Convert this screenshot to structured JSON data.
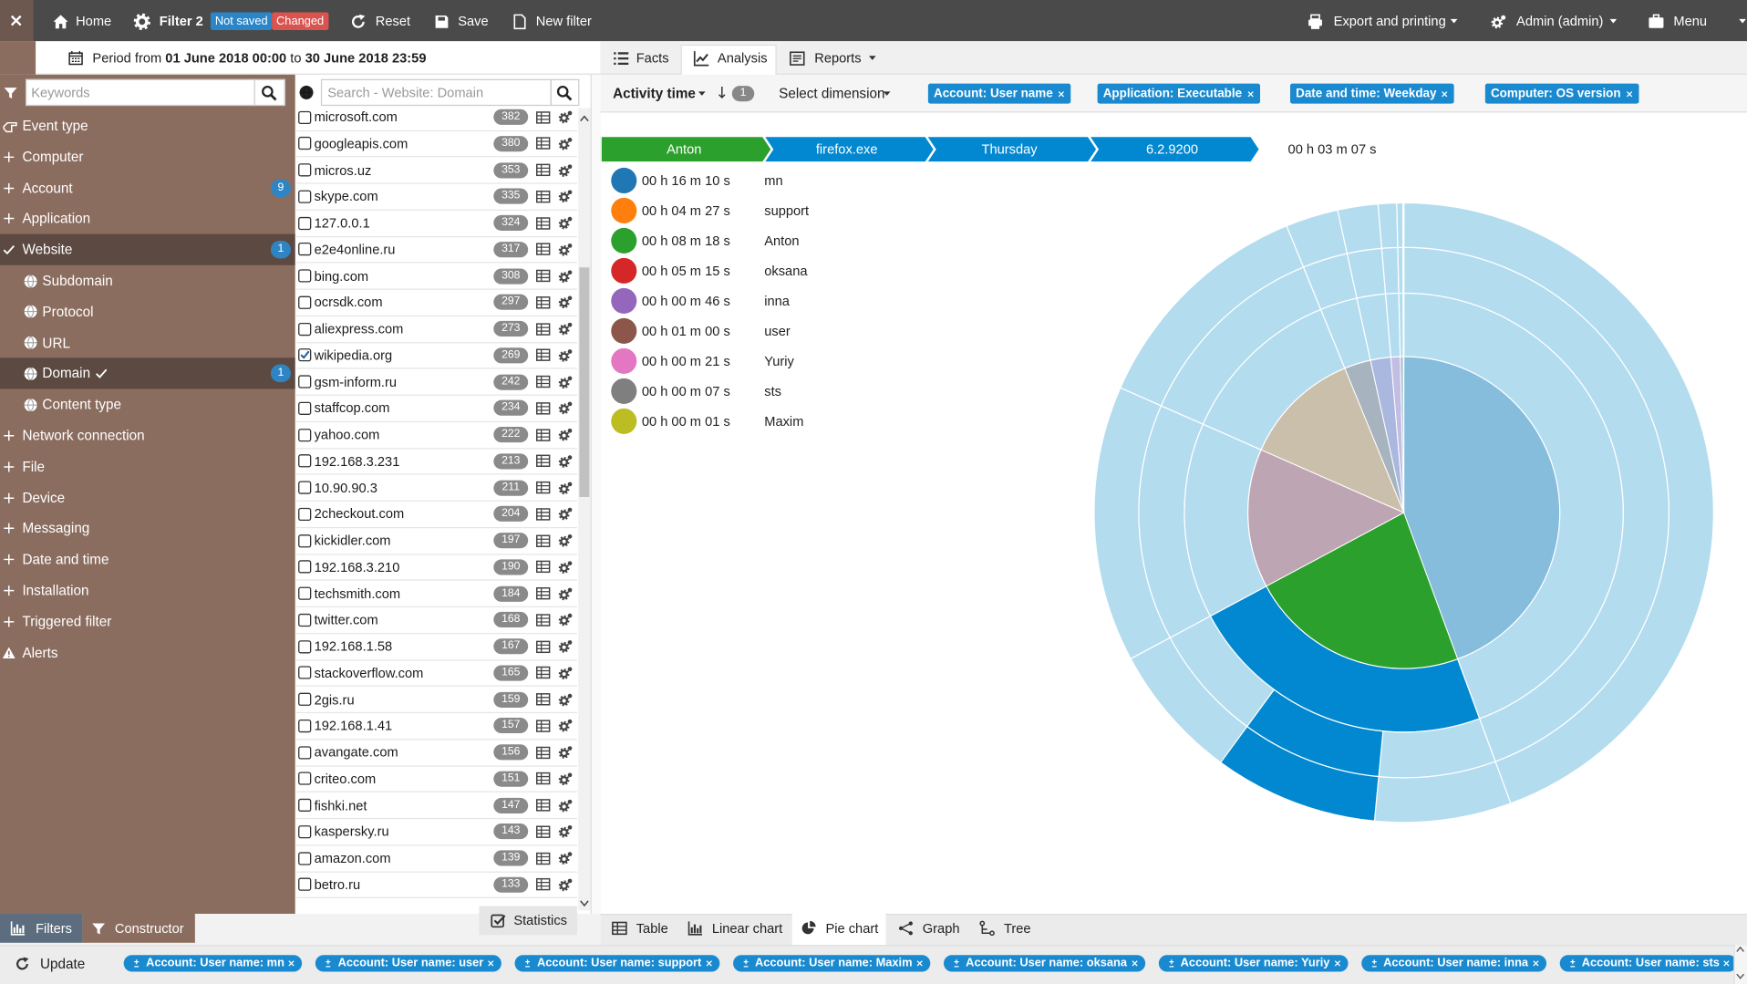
{
  "topbar": {
    "home": "Home",
    "filter": "Filter 2",
    "not_saved": "Not saved",
    "changed": "Changed",
    "reset": "Reset",
    "save": "Save",
    "new_filter": "New filter",
    "export": "Export and printing",
    "admin": "Admin (admin)",
    "menu": "Menu"
  },
  "period": {
    "prefix": "Period from",
    "start": "01 June 2018 00:00",
    "middle": "to",
    "end": "30 June 2018 23:59"
  },
  "sidebar": {
    "search_placeholder": "Keywords",
    "items": [
      {
        "label": "Event type",
        "icon": "hand"
      },
      {
        "label": "Computer",
        "icon": "plus"
      },
      {
        "label": "Account",
        "icon": "plus",
        "badge": 9
      },
      {
        "label": "Application",
        "icon": "plus"
      },
      {
        "label": "Website",
        "icon": "check",
        "badge": 1,
        "selected": true,
        "children": [
          {
            "label": "Subdomain"
          },
          {
            "label": "Protocol"
          },
          {
            "label": "URL"
          },
          {
            "label": "Domain",
            "badge": 1,
            "selected": true,
            "checked": true
          },
          {
            "label": "Content type"
          }
        ]
      },
      {
        "label": "Network connection",
        "icon": "plus"
      },
      {
        "label": "File",
        "icon": "plus"
      },
      {
        "label": "Device",
        "icon": "plus"
      },
      {
        "label": "Messaging",
        "icon": "plus"
      },
      {
        "label": "Date and time",
        "icon": "plus"
      },
      {
        "label": "Installation",
        "icon": "plus"
      },
      {
        "label": "Triggered filter",
        "icon": "plus"
      },
      {
        "label": "Alerts",
        "icon": "alert"
      }
    ]
  },
  "domains": {
    "search_placeholder": "Search - Website: Domain",
    "items": [
      {
        "name": "microsoft.com",
        "count": 382
      },
      {
        "name": "googleapis.com",
        "count": 380
      },
      {
        "name": "micros.uz",
        "count": 353
      },
      {
        "name": "skype.com",
        "count": 335
      },
      {
        "name": "127.0.0.1",
        "count": 324
      },
      {
        "name": "e2e4online.ru",
        "count": 317
      },
      {
        "name": "bing.com",
        "count": 308
      },
      {
        "name": "ocrsdk.com",
        "count": 297
      },
      {
        "name": "aliexpress.com",
        "count": 273
      },
      {
        "name": "wikipedia.org",
        "count": 269,
        "checked": true
      },
      {
        "name": "gsm-inform.ru",
        "count": 242
      },
      {
        "name": "staffcop.com",
        "count": 234
      },
      {
        "name": "yahoo.com",
        "count": 222
      },
      {
        "name": "192.168.3.231",
        "count": 213
      },
      {
        "name": "10.90.90.3",
        "count": 211
      },
      {
        "name": "2checkout.com",
        "count": 204
      },
      {
        "name": "kickidler.com",
        "count": 197
      },
      {
        "name": "192.168.3.210",
        "count": 190
      },
      {
        "name": "techsmith.com",
        "count": 184
      },
      {
        "name": "twitter.com",
        "count": 168
      },
      {
        "name": "192.168.1.58",
        "count": 167
      },
      {
        "name": "stackoverflow.com",
        "count": 165
      },
      {
        "name": "2gis.ru",
        "count": 159
      },
      {
        "name": "192.168.1.41",
        "count": 157
      },
      {
        "name": "avangate.com",
        "count": 156
      },
      {
        "name": "criteo.com",
        "count": 151
      },
      {
        "name": "fishki.net",
        "count": 147
      },
      {
        "name": "kaspersky.ru",
        "count": 143
      },
      {
        "name": "amazon.com",
        "count": 139
      },
      {
        "name": "betro.ru",
        "count": 133
      }
    ]
  },
  "left_tabs": {
    "filters": "Filters",
    "constructor": "Constructor",
    "statistics": "Statistics"
  },
  "view_tabs": {
    "facts": "Facts",
    "analysis": "Analysis",
    "reports": "Reports"
  },
  "toolbar": {
    "measure": "Activity time",
    "sort_badge": "1",
    "select_dimension": "Select dimension",
    "dimensions": [
      "Account: User name",
      "Application: Executable",
      "Date and time: Weekday",
      "Computer: OS version"
    ]
  },
  "breadcrumb": {
    "labels": [
      "Anton",
      "firefox.exe",
      "Thursday",
      "6.2.9200"
    ],
    "value": 187,
    "value_label": "00 h 03 m 07 s"
  },
  "chart_data": {
    "type": "pie",
    "categories": [
      "mn",
      "support",
      "Anton",
      "oksana",
      "inna",
      "user",
      "Yuriy",
      "sts",
      "Maxim"
    ],
    "values": [
      970,
      267,
      498,
      315,
      46,
      60,
      21,
      7,
      1
    ],
    "value_labels": [
      "00 h 16 m 10 s",
      "00 h 04 m 27 s",
      "00 h 08 m 18 s",
      "00 h 05 m 15 s",
      "00 h 00 m 46 s",
      "00 h 01 m 00 s",
      "00 h 00 m 21 s",
      "00 h 00 m 07 s",
      "00 h 00 m 01 s"
    ],
    "colors": [
      "#1f77b4",
      "#ff7f0e",
      "#2ca02c",
      "#d62728",
      "#9467bd",
      "#8c564b",
      "#e377c2",
      "#7f7f7f",
      "#bcbd22"
    ],
    "slice_order": [
      0,
      2,
      3,
      1,
      5,
      4,
      6,
      7,
      8
    ]
  },
  "chart_tabs": {
    "table": "Table",
    "linear": "Linear chart",
    "pie": "Pie chart",
    "graph": "Graph",
    "tree": "Tree"
  },
  "bottom": {
    "update": "Update",
    "filters": [
      "Account: User name: mn",
      "Account: User name: user",
      "Account: User name: support",
      "Account: User name: Maxim",
      "Account: User name: oksana",
      "Account: User name: Yuriy",
      "Account: User name: inna",
      "Account: User name: sts"
    ]
  }
}
